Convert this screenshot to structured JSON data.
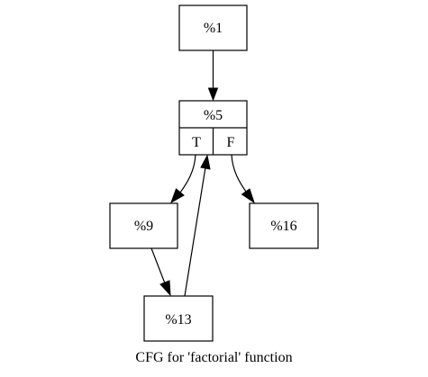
{
  "diagram": {
    "caption": "CFG for 'factorial' function",
    "nodes": {
      "n1": {
        "label": "%1"
      },
      "n5": {
        "label": "%5",
        "ports": {
          "true": "T",
          "false": "F"
        }
      },
      "n9": {
        "label": "%9"
      },
      "n16": {
        "label": "%16"
      },
      "n13": {
        "label": "%13"
      }
    },
    "edges": [
      {
        "from": "%1",
        "to": "%5"
      },
      {
        "from": "%5:T",
        "to": "%9"
      },
      {
        "from": "%5:F",
        "to": "%16"
      },
      {
        "from": "%9",
        "to": "%13"
      },
      {
        "from": "%13",
        "to": "%5"
      }
    ]
  }
}
